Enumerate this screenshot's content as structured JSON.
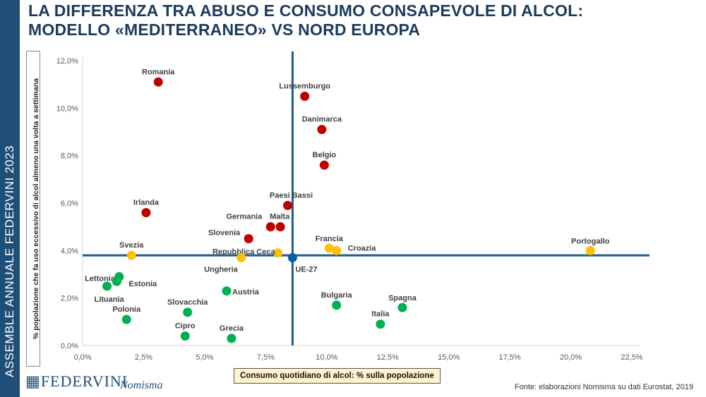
{
  "sidebar_text": "ASSEMBLE ANNUALE FEDERVINI 2023",
  "title_line1": "LA DIFFERENZA TRA ABUSO E CONSUMO CONSAPEVOLE DI ALCOL:",
  "title_line2": "MODELLO «MEDITERRANEO» VS NORD EUROPA",
  "source": "Fonte: elaborazioni Nomisma su dati Eurostat, 2019",
  "logos": [
    "FEDERVINI",
    "Nomisma"
  ],
  "colors": {
    "red": "#c00000",
    "yellow": "#ffc000",
    "green": "#00b050",
    "blue": "#0b5fa5",
    "reference_lines": "#1f5b8f"
  },
  "chart_data": {
    "type": "scatter",
    "xlabel": "Consumo quotidiano di alcol: % sulla popolazione",
    "ylabel": "% popolazione che fa uso eccessivo di alcol almeno una volta a settimana",
    "xlim": [
      0,
      22.5
    ],
    "ylim": [
      0,
      12
    ],
    "xticks": [
      "0,0%",
      "2,5%",
      "5,0%",
      "7,5%",
      "10,0%",
      "12,5%",
      "15,0%",
      "17,5%",
      "20,0%",
      "22,5%"
    ],
    "yticks": [
      "0,0%",
      "2,0%",
      "4,0%",
      "6,0%",
      "8,0%",
      "10,0%",
      "12,0%"
    ],
    "grid": false,
    "reference_lines": {
      "x": 8.6,
      "y": 3.8
    },
    "points": [
      {
        "label": "Romania",
        "x": 3.1,
        "y": 11.1,
        "color": "red"
      },
      {
        "label": "Lussemburgo",
        "x": 9.1,
        "y": 10.5,
        "color": "red"
      },
      {
        "label": "Danimarca",
        "x": 9.8,
        "y": 9.1,
        "color": "red"
      },
      {
        "label": "Belgio",
        "x": 9.9,
        "y": 7.6,
        "color": "red"
      },
      {
        "label": "Paesi Bassi",
        "x": 8.4,
        "y": 5.9,
        "color": "red"
      },
      {
        "label": "Irlanda",
        "x": 2.6,
        "y": 5.6,
        "color": "red"
      },
      {
        "label": "Germania",
        "x": 7.7,
        "y": 5.0,
        "color": "red"
      },
      {
        "label": "Malta",
        "x": 8.1,
        "y": 5.0,
        "color": "red"
      },
      {
        "label": "Slovenia",
        "x": 6.8,
        "y": 4.5,
        "color": "red"
      },
      {
        "label": "Francia",
        "x": 10.1,
        "y": 4.1,
        "color": "yellow"
      },
      {
        "label": "Croazia",
        "x": 10.4,
        "y": 4.0,
        "color": "yellow"
      },
      {
        "label": "Portogallo",
        "x": 20.8,
        "y": 4.0,
        "color": "yellow"
      },
      {
        "label": "Svezia",
        "x": 2.0,
        "y": 3.8,
        "color": "yellow"
      },
      {
        "label": "Repubblica Ceca",
        "x": 8.0,
        "y": 3.9,
        "color": "yellow"
      },
      {
        "label": "Ungheria",
        "x": 6.5,
        "y": 3.7,
        "color": "yellow"
      },
      {
        "label": "UE-27",
        "x": 8.6,
        "y": 3.7,
        "color": "blue"
      },
      {
        "label": "Lettonia",
        "x": 1.5,
        "y": 2.9,
        "color": "green"
      },
      {
        "label": "Estonia",
        "x": 1.4,
        "y": 2.7,
        "color": "green"
      },
      {
        "label": "Lituania",
        "x": 1.0,
        "y": 2.5,
        "color": "green"
      },
      {
        "label": "Austria",
        "x": 5.9,
        "y": 2.3,
        "color": "green"
      },
      {
        "label": "Bulgaria",
        "x": 10.4,
        "y": 1.7,
        "color": "green"
      },
      {
        "label": "Spagna",
        "x": 13.1,
        "y": 1.6,
        "color": "green"
      },
      {
        "label": "Italia",
        "x": 12.2,
        "y": 0.9,
        "color": "green"
      },
      {
        "label": "Slovacchia",
        "x": 4.3,
        "y": 1.4,
        "color": "green"
      },
      {
        "label": "Polonia",
        "x": 1.8,
        "y": 1.1,
        "color": "green"
      },
      {
        "label": "Cipro",
        "x": 4.2,
        "y": 0.4,
        "color": "green"
      },
      {
        "label": "Grecia",
        "x": 6.1,
        "y": 0.3,
        "color": "green"
      }
    ]
  }
}
